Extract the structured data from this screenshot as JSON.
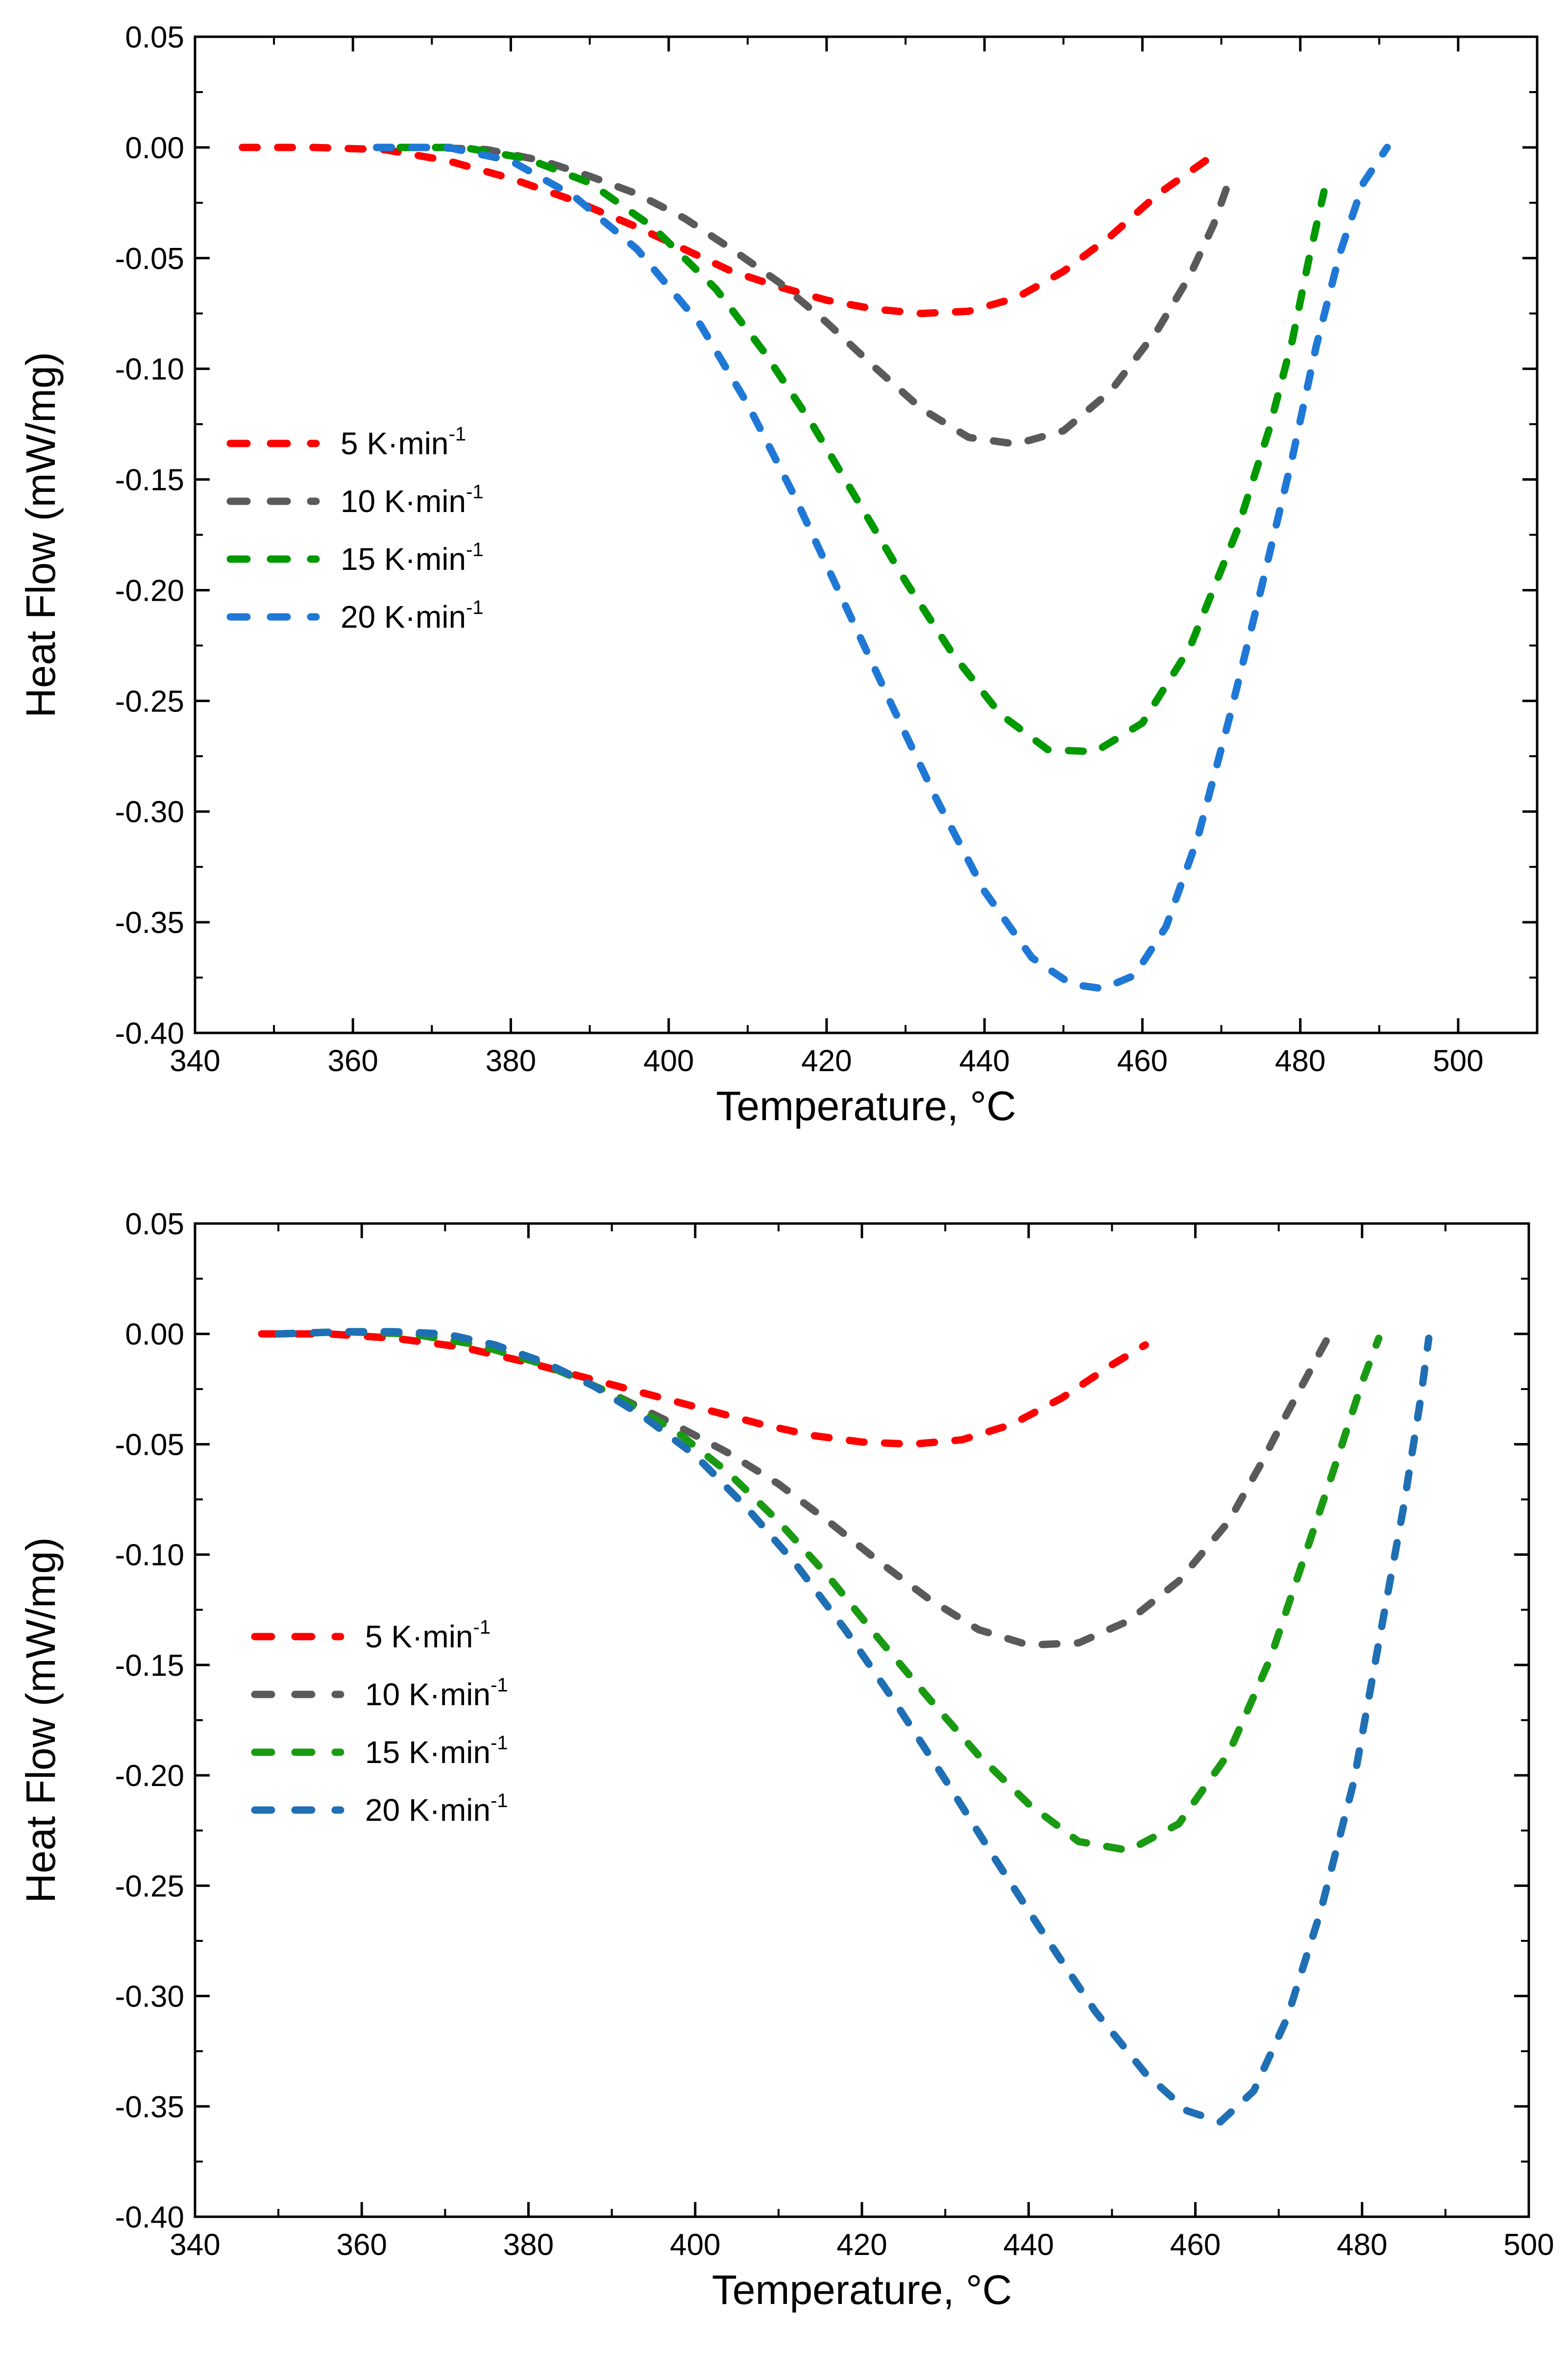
{
  "chart_data": [
    {
      "type": "line",
      "style": "dashed",
      "xlabel": "Temperature, °C",
      "ylabel": "Heat Flow (mW/mg)",
      "xlim": [
        340,
        510
      ],
      "ylim": [
        -0.4,
        0.05
      ],
      "xticks": [
        340,
        360,
        380,
        400,
        420,
        440,
        460,
        480,
        500
      ],
      "xtick_labels": [
        "340",
        "360",
        "380",
        "400",
        "420",
        "440",
        "460",
        "480",
        "500"
      ],
      "yticks": [
        0.05,
        0.0,
        -0.05,
        -0.1,
        -0.15,
        -0.2,
        -0.25,
        -0.3,
        -0.35,
        -0.4
      ],
      "ytick_labels": [
        "0.05",
        "0.00",
        "-0.05",
        "-0.10",
        "-0.15",
        "-0.20",
        "-0.25",
        "-0.30",
        "-0.35",
        "-0.40"
      ],
      "legend_position": "middle-left",
      "series": [
        {
          "name": "5 K·min",
          "label_main": "5 K·min",
          "label_sup": "-1",
          "color": "#ff0000",
          "x": [
            346,
            355,
            364,
            372,
            380,
            388,
            396,
            402,
            408,
            414,
            420,
            426,
            432,
            438,
            444,
            450,
            456,
            462,
            468,
            470
          ],
          "y": [
            0.0,
            0.0,
            -0.001,
            -0.006,
            -0.014,
            -0.024,
            -0.036,
            -0.046,
            -0.056,
            -0.063,
            -0.069,
            -0.073,
            -0.075,
            -0.074,
            -0.068,
            -0.056,
            -0.04,
            -0.021,
            -0.006,
            -0.002
          ]
        },
        {
          "name": "10 K·min",
          "label_main": "10 K·min",
          "label_sup": "-1",
          "color": "#5a5a5a",
          "x": [
            363,
            370,
            377,
            384,
            390,
            396,
            402,
            408,
            414,
            420,
            426,
            432,
            438,
            444,
            450,
            456,
            462,
            466,
            469,
            471
          ],
          "y": [
            0.0,
            0.0,
            -0.001,
            -0.006,
            -0.013,
            -0.021,
            -0.032,
            -0.046,
            -0.061,
            -0.079,
            -0.099,
            -0.118,
            -0.131,
            -0.134,
            -0.128,
            -0.11,
            -0.082,
            -0.058,
            -0.035,
            -0.015
          ]
        },
        {
          "name": "15 K·min",
          "label_main": "15   K·min",
          "label_sup": "-1",
          "color": "#009900",
          "x": [
            366,
            374,
            382,
            390,
            398,
            406,
            412,
            418,
            424,
            430,
            436,
            442,
            448,
            454,
            460,
            466,
            472,
            476,
            479,
            481,
            483
          ],
          "y": [
            0.0,
            0.0,
            -0.005,
            -0.016,
            -0.036,
            -0.064,
            -0.092,
            -0.124,
            -0.16,
            -0.196,
            -0.229,
            -0.256,
            -0.272,
            -0.273,
            -0.26,
            -0.226,
            -0.173,
            -0.128,
            -0.087,
            -0.052,
            -0.02
          ]
        },
        {
          "name": "20 K·min",
          "label_main": "20 K·min",
          "label_sup": "-1",
          "color": "#1f78d6",
          "x": [
            363,
            372,
            380,
            388,
            396,
            404,
            410,
            416,
            422,
            428,
            434,
            440,
            446,
            451,
            455,
            459,
            463,
            467,
            471,
            475,
            479,
            482,
            485,
            488,
            491
          ],
          "y": [
            0.0,
            0.0,
            -0.006,
            -0.022,
            -0.046,
            -0.08,
            -0.116,
            -0.158,
            -0.204,
            -0.25,
            -0.295,
            -0.336,
            -0.366,
            -0.378,
            -0.38,
            -0.374,
            -0.352,
            -0.312,
            -0.258,
            -0.2,
            -0.14,
            -0.09,
            -0.048,
            -0.016,
            0.0
          ]
        }
      ]
    },
    {
      "type": "line",
      "style": "dashed",
      "xlabel": "Temperature, °C",
      "ylabel": "Heat Flow (mW/mg)",
      "xlim": [
        340,
        500
      ],
      "ylim": [
        -0.4,
        0.05
      ],
      "xticks": [
        340,
        360,
        380,
        400,
        420,
        440,
        460,
        480,
        500
      ],
      "xtick_labels": [
        "340",
        "360",
        "380",
        "400",
        "420",
        "440",
        "460",
        "480",
        "500"
      ],
      "yticks": [
        0.05,
        0.0,
        -0.05,
        -0.1,
        -0.15,
        -0.2,
        -0.25,
        -0.3,
        -0.35,
        -0.4
      ],
      "ytick_labels": [
        "0.05",
        "0.00",
        "-0.05",
        "-0.10",
        "-0.15",
        "-0.20",
        "-0.25",
        "-0.30",
        "-0.35",
        "-0.40"
      ],
      "legend_position": "middle-left",
      "series": [
        {
          "name": "5 K·min",
          "label_main": "5 K·min",
          "label_sup": "-1",
          "color": "#ff0000",
          "x": [
            348,
            356,
            364,
            372,
            380,
            388,
            396,
            402,
            408,
            414,
            420,
            426,
            432,
            438,
            444,
            450,
            454
          ],
          "y": [
            0.0,
            0.0,
            -0.002,
            -0.006,
            -0.013,
            -0.021,
            -0.029,
            -0.035,
            -0.041,
            -0.046,
            -0.049,
            -0.05,
            -0.048,
            -0.041,
            -0.029,
            -0.014,
            -0.005
          ]
        },
        {
          "name": "10 K·min",
          "label_main": "10 K·min",
          "label_sup": "-1",
          "color": "#5a5a5a",
          "x": [
            350,
            358,
            366,
            374,
            382,
            390,
            398,
            404,
            410,
            416,
            422,
            428,
            434,
            440,
            446,
            452,
            458,
            464,
            468,
            471,
            474,
            476
          ],
          "y": [
            0.0,
            0.001,
            0.0,
            -0.005,
            -0.014,
            -0.027,
            -0.042,
            -0.054,
            -0.068,
            -0.085,
            -0.103,
            -0.12,
            -0.134,
            -0.141,
            -0.14,
            -0.13,
            -0.112,
            -0.085,
            -0.058,
            -0.036,
            -0.015,
            -0.001
          ]
        },
        {
          "name": "15 K·min",
          "label_main": "15 K·min",
          "label_sup": "-1",
          "color": "#1a9a12",
          "x": [
            350,
            358,
            366,
            374,
            382,
            390,
            398,
            404,
            410,
            416,
            422,
            428,
            434,
            440,
            446,
            452,
            458,
            464,
            469,
            473,
            477,
            480,
            482
          ],
          "y": [
            0.0,
            0.001,
            0.0,
            -0.005,
            -0.014,
            -0.027,
            -0.045,
            -0.063,
            -0.085,
            -0.11,
            -0.138,
            -0.165,
            -0.191,
            -0.213,
            -0.23,
            -0.234,
            -0.222,
            -0.19,
            -0.147,
            -0.102,
            -0.057,
            -0.022,
            -0.002
          ]
        },
        {
          "name": "20 K·min",
          "label_main": "20 K·min",
          "label_sup": "-1",
          "color": "#1f6fb4",
          "x": [
            350,
            358,
            364,
            370,
            376,
            382,
            388,
            394,
            400,
            406,
            412,
            418,
            424,
            430,
            436,
            442,
            448,
            454,
            459,
            463,
            467,
            471,
            475,
            479,
            482,
            485,
            487,
            488
          ],
          "y": [
            0.0,
            0.001,
            0.001,
            0.0,
            -0.005,
            -0.013,
            -0.024,
            -0.038,
            -0.055,
            -0.078,
            -0.104,
            -0.134,
            -0.167,
            -0.202,
            -0.238,
            -0.273,
            -0.307,
            -0.335,
            -0.352,
            -0.357,
            -0.343,
            -0.31,
            -0.262,
            -0.203,
            -0.14,
            -0.078,
            -0.03,
            -0.002
          ]
        }
      ]
    }
  ]
}
